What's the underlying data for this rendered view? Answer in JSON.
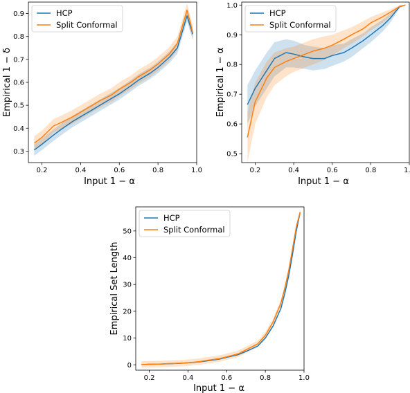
{
  "colors": {
    "hcp": "#1f77b4",
    "split": "#ff7f0e"
  },
  "chart_data": [
    {
      "type": "line",
      "xlabel": "Input 1 − α",
      "ylabel": "Empirical 1 − δ",
      "xlim": [
        0.13,
        1.0
      ],
      "ylim": [
        0.25,
        0.95
      ],
      "xticks": [
        0.2,
        0.4,
        0.6,
        0.8,
        1.0
      ],
      "xtick_labels": [
        "0.2",
        "0.4",
        "0.6",
        "0.8",
        "1.0"
      ],
      "yticks": [
        0.3,
        0.4,
        0.5,
        0.6,
        0.7,
        0.8,
        0.9
      ],
      "ytick_labels": [
        "0.3",
        "0.4",
        "0.5",
        "0.6",
        "0.7",
        "0.8",
        "0.9"
      ],
      "legend": "top-left",
      "grid": false,
      "x": [
        0.16,
        0.2,
        0.26,
        0.3,
        0.36,
        0.4,
        0.46,
        0.5,
        0.56,
        0.6,
        0.66,
        0.7,
        0.76,
        0.8,
        0.86,
        0.9,
        0.95,
        0.98
      ],
      "series": [
        {
          "name": "HCP",
          "color": "#1f77b4",
          "values": [
            0.305,
            0.33,
            0.37,
            0.395,
            0.43,
            0.45,
            0.48,
            0.5,
            0.53,
            0.55,
            0.585,
            0.61,
            0.64,
            0.665,
            0.71,
            0.75,
            0.89,
            0.81
          ],
          "band": 0.025
        },
        {
          "name": "Split Conformal",
          "color": "#ff7f0e",
          "values": [
            0.335,
            0.36,
            0.41,
            0.425,
            0.45,
            0.47,
            0.5,
            0.52,
            0.545,
            0.57,
            0.6,
            0.625,
            0.655,
            0.68,
            0.725,
            0.77,
            0.915,
            0.815
          ],
          "band": 0.03
        }
      ]
    },
    {
      "type": "line",
      "xlabel": "Input 1 − α",
      "ylabel": "Empirical 1 − α",
      "xlim": [
        0.13,
        1.0
      ],
      "ylim": [
        0.47,
        1.01
      ],
      "xticks": [
        0.2,
        0.4,
        0.6,
        0.8,
        1.0
      ],
      "xtick_labels": [
        "0.2",
        "0.4",
        "0.6",
        "0.8",
        "1.0"
      ],
      "yticks": [
        0.5,
        0.6,
        0.7,
        0.8,
        0.9,
        1.0
      ],
      "ytick_labels": [
        "0.5",
        "0.6",
        "0.7",
        "0.8",
        "0.9",
        "1.0"
      ],
      "legend": "top-left",
      "grid": false,
      "x": [
        0.16,
        0.2,
        0.26,
        0.3,
        0.36,
        0.4,
        0.46,
        0.5,
        0.56,
        0.6,
        0.66,
        0.7,
        0.76,
        0.8,
        0.86,
        0.9,
        0.95,
        0.98
      ],
      "series": [
        {
          "name": "HCP",
          "color": "#1f77b4",
          "values": [
            0.665,
            0.72,
            0.78,
            0.82,
            0.84,
            0.835,
            0.825,
            0.82,
            0.82,
            0.83,
            0.84,
            0.855,
            0.88,
            0.9,
            0.93,
            0.955,
            0.995,
            1.0
          ],
          "band_low": [
            0.6,
            0.66,
            0.72,
            0.76,
            0.79,
            0.79,
            0.785,
            0.78,
            0.785,
            0.795,
            0.81,
            0.825,
            0.855,
            0.875,
            0.91,
            0.94,
            0.99,
            0.999
          ],
          "band_high": [
            0.73,
            0.78,
            0.84,
            0.875,
            0.885,
            0.88,
            0.865,
            0.86,
            0.855,
            0.865,
            0.87,
            0.885,
            0.905,
            0.925,
            0.95,
            0.97,
            0.999,
            1.0
          ]
        },
        {
          "name": "Split Conformal",
          "color": "#ff7f0e",
          "values": [
            0.555,
            0.675,
            0.755,
            0.79,
            0.81,
            0.82,
            0.835,
            0.845,
            0.855,
            0.865,
            0.885,
            0.9,
            0.92,
            0.94,
            0.96,
            0.975,
            0.995,
            1.0
          ],
          "band_low": [
            0.47,
            0.6,
            0.69,
            0.73,
            0.76,
            0.775,
            0.79,
            0.8,
            0.815,
            0.83,
            0.855,
            0.87,
            0.895,
            0.915,
            0.94,
            0.96,
            0.99,
            0.999
          ],
          "band_high": [
            0.64,
            0.74,
            0.81,
            0.84,
            0.855,
            0.86,
            0.875,
            0.885,
            0.895,
            0.9,
            0.915,
            0.925,
            0.945,
            0.96,
            0.975,
            0.985,
            0.999,
            1.0
          ]
        }
      ]
    },
    {
      "type": "line",
      "xlabel": "Input 1 − α",
      "ylabel": "Empirical Set Length",
      "xlim": [
        0.13,
        1.0
      ],
      "ylim": [
        -2,
        59
      ],
      "xticks": [
        0.2,
        0.4,
        0.6,
        0.8,
        1.0
      ],
      "xtick_labels": [
        "0.2",
        "0.4",
        "0.6",
        "0.8",
        "1.0"
      ],
      "yticks": [
        0,
        10,
        20,
        30,
        40,
        50
      ],
      "ytick_labels": [
        "0",
        "10",
        "20",
        "30",
        "40",
        "50"
      ],
      "legend": "top-left",
      "grid": false,
      "x": [
        0.16,
        0.2,
        0.26,
        0.3,
        0.36,
        0.4,
        0.46,
        0.5,
        0.56,
        0.6,
        0.66,
        0.7,
        0.76,
        0.8,
        0.84,
        0.88,
        0.9,
        0.92,
        0.94,
        0.96,
        0.98
      ],
      "series": [
        {
          "name": "HCP",
          "color": "#1f77b4",
          "values": [
            0.1,
            0.2,
            0.3,
            0.4,
            0.55,
            0.75,
            1.1,
            1.5,
            2.1,
            2.8,
            3.8,
            5.0,
            7.0,
            10.0,
            14.5,
            21.0,
            26.5,
            33.0,
            41.0,
            50.0,
            57.0
          ]
        },
        {
          "name": "Split Conformal",
          "color": "#ff7f0e",
          "values": [
            0.1,
            0.2,
            0.3,
            0.45,
            0.6,
            0.8,
            1.2,
            1.7,
            2.3,
            3.0,
            4.1,
            5.6,
            7.8,
            11.0,
            16.0,
            23.0,
            28.5,
            35.0,
            43.0,
            51.5,
            57.0
          ],
          "band": 1.2
        }
      ]
    }
  ]
}
